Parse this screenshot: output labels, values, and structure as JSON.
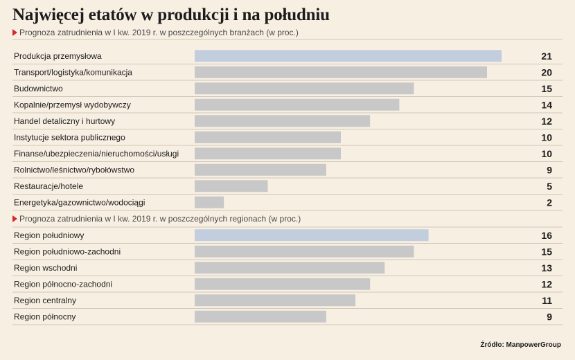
{
  "title": "Najwięcej etatów w produkcji i na południu",
  "source": "Źródło: ManpowerGroup",
  "colors": {
    "bar": "#c8c8c8",
    "highlight": "#c2cddd",
    "accent": "#d7282f",
    "background": "#f8efe3"
  },
  "chart_data": [
    {
      "type": "bar",
      "orientation": "horizontal",
      "title": "Prognoza zatrudnienia w I kw. 2019 r. w poszczególnych branżach (w proc.)",
      "categories": [
        "Produkcja przemysłowa",
        "Transport/logistyka/komunikacja",
        "Budownictwo",
        "Kopalnie/przemysł wydobywczy",
        "Handel detaliczny i hurtowy",
        "Instytucje sektora publicznego",
        "Finanse/ubezpieczenia/nieruchomości/usługi",
        "Rolnictwo/leśnictwo/rybołówstwo",
        "Restauracje/hotele",
        "Energetyka/gazownictwo/wodociągi"
      ],
      "values": [
        21,
        20,
        15,
        14,
        12,
        10,
        10,
        9,
        5,
        2
      ],
      "highlight_index": 0
    },
    {
      "type": "bar",
      "orientation": "horizontal",
      "title": "Prognoza zatrudnienia w I kw. 2019 r. w poszczególnych regionach (w proc.)",
      "categories": [
        "Region południowy",
        "Region południowo-zachodni",
        "Region wschodni",
        "Region północno-zachodni",
        "Region centralny",
        "Region północny"
      ],
      "values": [
        16,
        15,
        13,
        12,
        11,
        9
      ],
      "highlight_index": 0
    }
  ]
}
